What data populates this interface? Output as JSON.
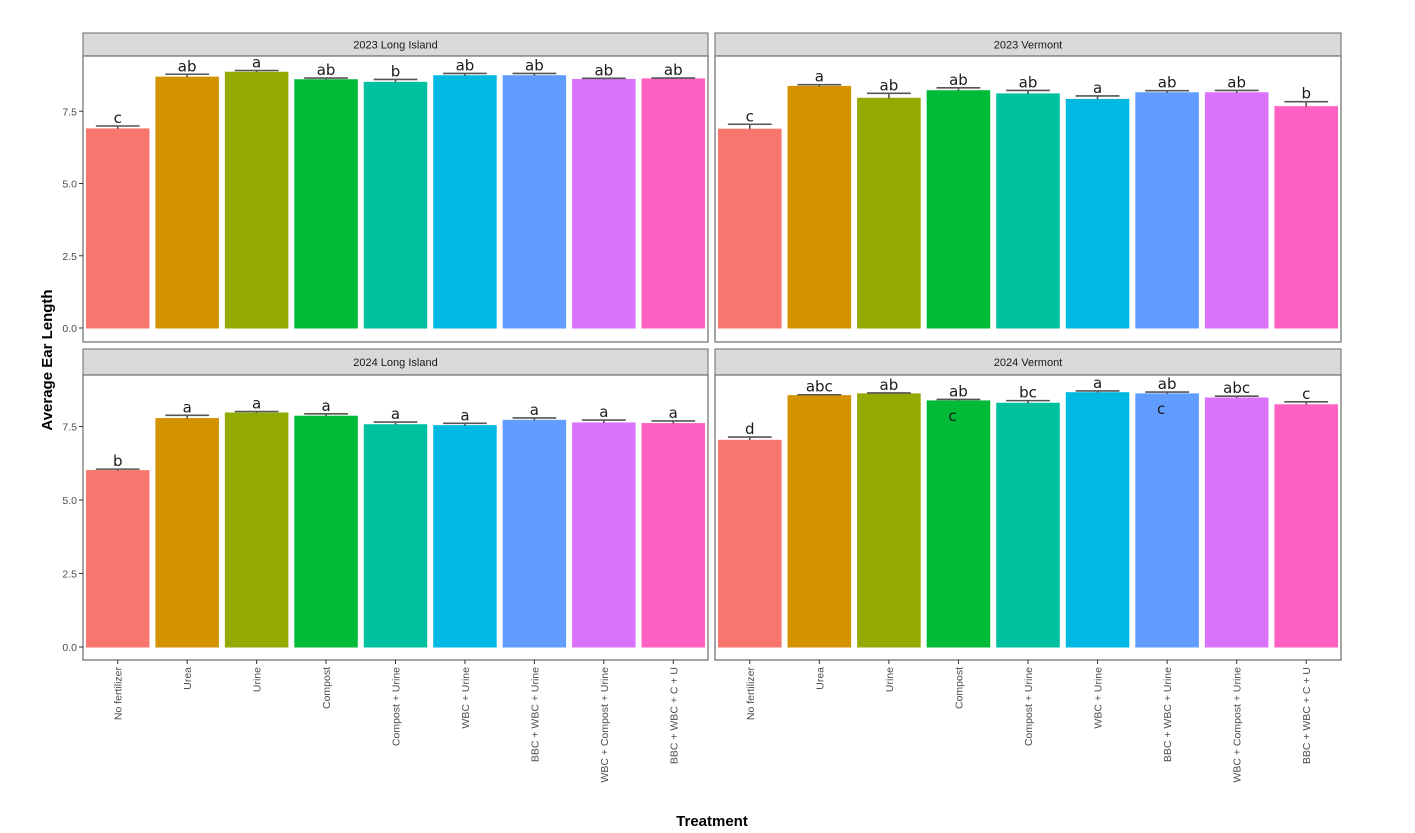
{
  "chart_data": {
    "type": "bar",
    "title": "",
    "xlabel": "Treatment",
    "ylabel": "Average Ear Length",
    "ylim": [
      0,
      9.3
    ],
    "yticks": [
      "0.0",
      "2.5",
      "5.0",
      "7.5"
    ],
    "ytick_values": [
      0,
      2.5,
      5.0,
      7.5
    ],
    "grid": false,
    "legend": "none",
    "categories": [
      "No fertilizer",
      "Urea",
      "Urine",
      "Compost",
      "Compost + Urine",
      "WBC + Urine",
      "BBC + WBC + Urine",
      "WBC + Compost + Urine",
      "BBC + WBC + C + U"
    ],
    "colors": [
      "#F8766D",
      "#D39200",
      "#93AA00",
      "#00BA38",
      "#00C19F",
      "#00B9E3",
      "#619CFF",
      "#DB72FB",
      "#FF61C3"
    ],
    "panels": [
      {
        "name": "2023 Long Island",
        "values": [
          6.89,
          8.68,
          8.85,
          8.59,
          8.5,
          8.73,
          8.73,
          8.6,
          8.62
        ],
        "errors": [
          0.1,
          0.1,
          0.06,
          0.06,
          0.1,
          0.08,
          0.08,
          0.04,
          0.03
        ],
        "letters": [
          "c",
          "ab",
          "a",
          "ab",
          "b",
          "ab",
          "ab",
          "ab",
          "ab"
        ],
        "letters_extra": [
          "",
          "",
          "",
          "",
          "",
          "",
          "",
          "",
          ""
        ]
      },
      {
        "name": "2023 Vermont",
        "values": [
          6.88,
          8.36,
          7.95,
          8.21,
          8.1,
          7.91,
          8.14,
          8.14,
          7.66
        ],
        "errors": [
          0.17,
          0.06,
          0.17,
          0.1,
          0.12,
          0.12,
          0.07,
          0.08,
          0.17
        ],
        "letters": [
          "c",
          "a",
          "ab",
          "ab",
          "ab",
          "a",
          "ab",
          "ab",
          "b"
        ],
        "letters_extra": [
          "",
          "",
          "",
          "",
          "",
          "",
          "",
          "",
          ""
        ]
      },
      {
        "name": "2024 Long Island",
        "values": [
          6.0,
          7.77,
          7.96,
          7.85,
          7.56,
          7.53,
          7.71,
          7.62,
          7.6
        ],
        "errors": [
          0.05,
          0.11,
          0.05,
          0.08,
          0.09,
          0.08,
          0.08,
          0.1,
          0.09
        ],
        "letters": [
          "b",
          "a",
          "a",
          "a",
          "a",
          "a",
          "a",
          "a",
          "a"
        ],
        "letters_extra": [
          "",
          "",
          "",
          "",
          "",
          "",
          "",
          "",
          ""
        ]
      },
      {
        "name": "2024 Vermont",
        "values": [
          7.03,
          8.55,
          8.61,
          8.37,
          8.29,
          8.65,
          8.61,
          8.47,
          8.24
        ],
        "errors": [
          0.11,
          0.03,
          0.03,
          0.05,
          0.09,
          0.06,
          0.06,
          0.06,
          0.1
        ],
        "letters": [
          "d",
          "abc",
          "ab",
          "ab",
          "bc",
          "a",
          "ab",
          "abc",
          "c"
        ],
        "letters_extra": [
          "",
          "",
          "",
          "c",
          "",
          "",
          "c",
          "",
          ""
        ]
      }
    ]
  }
}
